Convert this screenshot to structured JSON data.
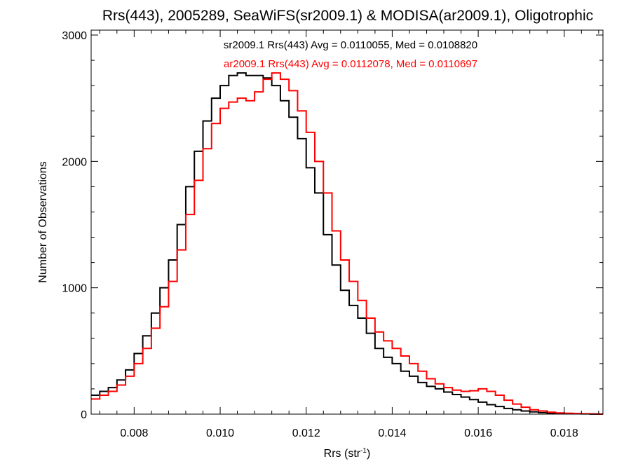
{
  "chart_data": {
    "type": "line",
    "title": "Rrs(443), 2005289, SeaWiFS(sr2009.1) & MODISA(ar2009.1), Oligotrophic",
    "xlabel": "Rrs (str",
    "xlabel_sup": "-1",
    "xlabel_close": ")",
    "ylabel": "Number of Observations",
    "xlim": [
      0.007,
      0.0189
    ],
    "ylim": [
      0,
      3000
    ],
    "xticks": [
      0.008,
      0.01,
      0.012,
      0.014,
      0.016,
      0.018
    ],
    "xtick_labels": [
      "0.008",
      "0.010",
      "0.012",
      "0.014",
      "0.016",
      "0.018"
    ],
    "yticks": [
      0,
      1000,
      2000,
      3000
    ],
    "ytick_labels": [
      "0",
      "1000",
      "2000",
      "3000"
    ],
    "grid": false,
    "stats": [
      {
        "text": "sr2009.1 Rrs(443) Avg = 0.0110055, Med = 0.0108820",
        "color": "#000000"
      },
      {
        "text": "ar2009.1 Rrs(443) Avg = 0.0112078, Med = 0.0110697",
        "color": "#ff0000"
      }
    ],
    "series": [
      {
        "color": "#000000",
        "x": [
          0.007,
          0.0072,
          0.0074,
          0.0076,
          0.0078,
          0.008,
          0.0082,
          0.0084,
          0.0086,
          0.0088,
          0.009,
          0.0092,
          0.0094,
          0.0096,
          0.0098,
          0.01,
          0.0102,
          0.0104,
          0.0106,
          0.0108,
          0.011,
          0.0112,
          0.0114,
          0.0116,
          0.0118,
          0.012,
          0.0122,
          0.0124,
          0.0126,
          0.0128,
          0.013,
          0.0132,
          0.0134,
          0.0136,
          0.0138,
          0.014,
          0.0142,
          0.0144,
          0.0146,
          0.0148,
          0.015,
          0.0152,
          0.0154,
          0.0156,
          0.0158,
          0.016,
          0.0162,
          0.0164,
          0.0166,
          0.0168,
          0.017,
          0.0172,
          0.0174,
          0.0176,
          0.0178,
          0.018,
          0.0182,
          0.0184,
          0.0186,
          0.0188
        ],
        "y": [
          150,
          180,
          210,
          270,
          350,
          480,
          620,
          800,
          1000,
          1220,
          1500,
          1800,
          2080,
          2320,
          2500,
          2600,
          2680,
          2700,
          2680,
          2680,
          2660,
          2600,
          2480,
          2350,
          2180,
          1950,
          1750,
          1420,
          1180,
          980,
          860,
          760,
          640,
          520,
          450,
          400,
          340,
          300,
          250,
          220,
          200,
          175,
          155,
          135,
          115,
          95,
          75,
          60,
          45,
          35,
          25,
          18,
          12,
          8,
          6,
          4,
          3,
          2,
          1,
          0
        ]
      },
      {
        "color": "#ff0000",
        "x": [
          0.007,
          0.0072,
          0.0074,
          0.0076,
          0.0078,
          0.008,
          0.0082,
          0.0084,
          0.0086,
          0.0088,
          0.009,
          0.0092,
          0.0094,
          0.0096,
          0.0098,
          0.01,
          0.0102,
          0.0104,
          0.0106,
          0.0108,
          0.011,
          0.0112,
          0.0114,
          0.0116,
          0.0118,
          0.012,
          0.0122,
          0.0124,
          0.0126,
          0.0128,
          0.013,
          0.0132,
          0.0134,
          0.0136,
          0.0138,
          0.014,
          0.0142,
          0.0144,
          0.0146,
          0.0148,
          0.015,
          0.0152,
          0.0154,
          0.0156,
          0.0158,
          0.016,
          0.0162,
          0.0164,
          0.0166,
          0.0168,
          0.017,
          0.0172,
          0.0174,
          0.0176,
          0.0178,
          0.018,
          0.0182,
          0.0184,
          0.0186,
          0.0188
        ],
        "y": [
          120,
          150,
          180,
          230,
          300,
          400,
          520,
          680,
          850,
          1050,
          1300,
          1580,
          1850,
          2100,
          2300,
          2420,
          2470,
          2500,
          2480,
          2550,
          2650,
          2700,
          2650,
          2560,
          2400,
          2230,
          2000,
          1750,
          1450,
          1220,
          1050,
          900,
          760,
          650,
          580,
          520,
          460,
          400,
          340,
          280,
          240,
          210,
          190,
          180,
          185,
          200,
          180,
          150,
          110,
          80,
          55,
          35,
          25,
          15,
          10,
          7,
          5,
          3,
          2,
          1
        ]
      }
    ]
  }
}
